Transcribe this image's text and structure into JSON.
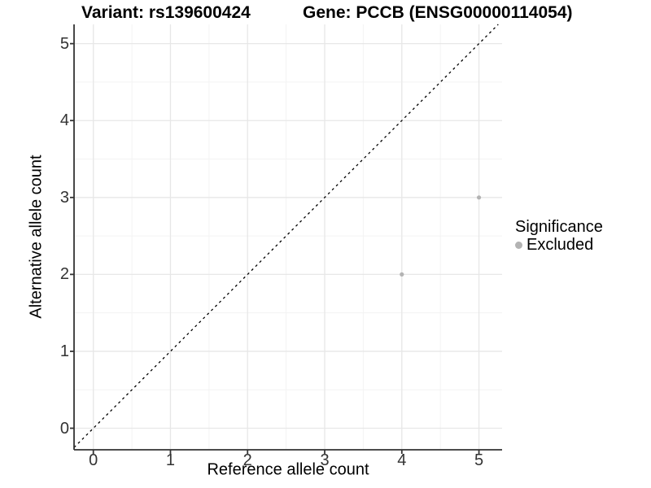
{
  "titles": {
    "variant": "Variant: rs139600424",
    "gene": "Gene: PCCB (ENSG00000114054)"
  },
  "chart_data": {
    "type": "scatter",
    "title": "Variant: rs139600424  /  Gene: PCCB (ENSG00000114054)",
    "xlabel": "Reference allele count",
    "ylabel": "Alternative allele count",
    "xlim": [
      -0.25,
      5.3
    ],
    "ylim": [
      -0.28,
      5.25
    ],
    "x_ticks": [
      "0",
      "1",
      "2",
      "3",
      "4",
      "5"
    ],
    "y_ticks": [
      "0",
      "1",
      "2",
      "3",
      "4",
      "5"
    ],
    "minor_grid_positions": [
      0.5,
      1.5,
      2.5,
      3.5,
      4.5
    ],
    "grid": true,
    "legend_position": "right",
    "series": [
      {
        "name": "Excluded",
        "marker": "circle",
        "color": "#b3b3b3",
        "points": [
          {
            "x": 4,
            "y": 2
          },
          {
            "x": 5,
            "y": 3
          }
        ]
      }
    ],
    "reference_line": {
      "type": "identity y=x",
      "style": "dashed",
      "color": "#000000"
    },
    "legend": {
      "title": "Significance",
      "entries": [
        {
          "label": "Excluded",
          "color": "#b3b3b3",
          "marker": "circle"
        }
      ]
    }
  },
  "colors": {
    "background": "#ffffff",
    "major_grid": "#e7e7e7",
    "minor_grid": "#f3f3f3",
    "axis": "#333333",
    "point": "#b3b3b3",
    "reference_line": "#000000",
    "tick_text": "#333333"
  }
}
